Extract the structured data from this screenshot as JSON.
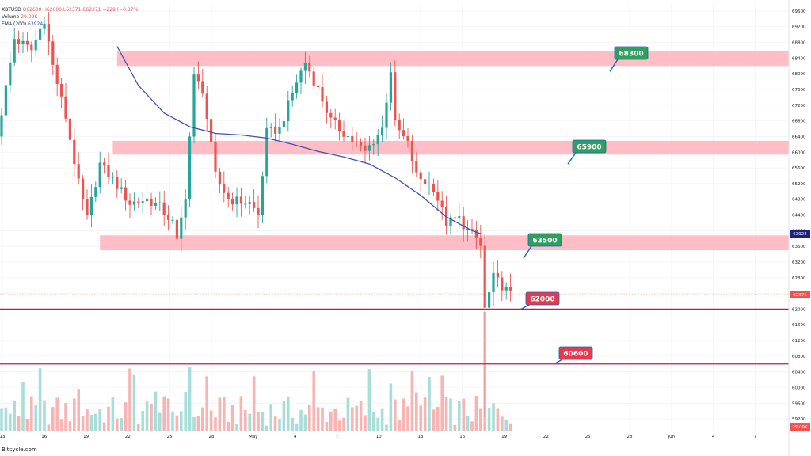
{
  "header": {
    "title_line": "XBTUSD",
    "ohlc": "O62600  H62600  L62371  C62371  −229 (−0.37%)",
    "volume_label": "Volume",
    "volume_value": "29.09K",
    "ema_label": "EMA (200)",
    "ema_value": "63924"
  },
  "footer": {
    "watermark": "Bitcycle.com"
  },
  "colors": {
    "up": "#26a69a",
    "down": "#ef5350",
    "zone": "#ffb6bf",
    "ema": "#3f51b5",
    "line": "#c2185b",
    "grid": "#eef0f3",
    "ann_green": "#2e9f5e",
    "ann_red": "#e53950"
  },
  "chart_data": {
    "type": "candlestick",
    "symbol": "XBTUSD",
    "interval": "4h",
    "y_range": [
      58900,
      69800
    ],
    "y_ticks": [
      59200,
      59600,
      60000,
      60400,
      60800,
      61200,
      61600,
      62000,
      62400,
      62800,
      63200,
      63600,
      64000,
      64400,
      64800,
      65200,
      65600,
      66000,
      66400,
      66800,
      67200,
      67600,
      68000,
      68400,
      68800,
      69200,
      69600
    ],
    "x_ticks": [
      "13",
      "16",
      "19",
      "22",
      "25",
      "28",
      "May",
      "4",
      "7",
      "10",
      "13",
      "16",
      "19",
      "22",
      "25",
      "28",
      "Jun",
      "4",
      "7"
    ],
    "candle_bars": 120,
    "ema_200": [
      [
        27,
        68700
      ],
      [
        32,
        67700
      ],
      [
        38,
        67000
      ],
      [
        44,
        66650
      ],
      [
        50,
        66480
      ],
      [
        56,
        66440
      ],
      [
        62,
        66360
      ],
      [
        68,
        66200
      ],
      [
        74,
        66020
      ],
      [
        80,
        65880
      ],
      [
        86,
        65700
      ],
      [
        92,
        65350
      ],
      [
        98,
        64900
      ],
      [
        104,
        64350
      ],
      [
        110,
        64000
      ],
      [
        112,
        63924
      ]
    ],
    "zones": [
      {
        "label": "68300",
        "from": 68200,
        "to": 68580,
        "start": 27
      },
      {
        "label": "65900",
        "from": 65940,
        "to": 66290,
        "start": 26
      },
      {
        "label": "63500",
        "from": 63500,
        "to": 63880,
        "start": 23
      }
    ],
    "levels": [
      {
        "label": "62000",
        "value": 62000
      },
      {
        "label": "60600",
        "value": 60600
      }
    ],
    "price_labels": [
      {
        "value": 63924,
        "label": "63924",
        "color": "#1a237e"
      },
      {
        "value": 62371,
        "label": "62371",
        "color": "#ef5350"
      },
      {
        "value": 59000,
        "label": "29.09K",
        "color": "#ef5350"
      }
    ]
  }
}
